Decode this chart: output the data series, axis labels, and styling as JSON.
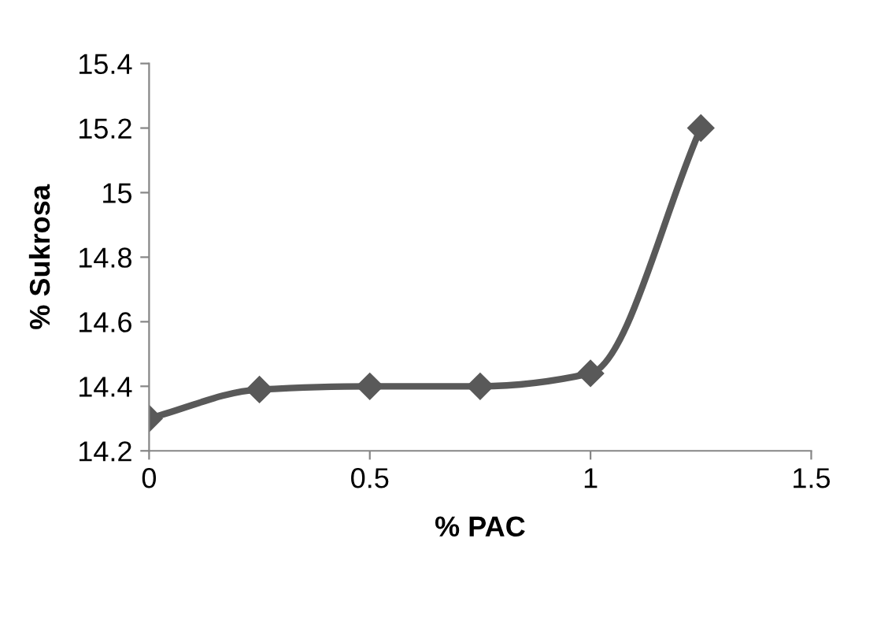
{
  "chart_data": {
    "type": "line",
    "xlabel": "% PAC",
    "ylabel": "% Sukrosa",
    "x": [
      0,
      0.25,
      0.5,
      0.75,
      1,
      1.25
    ],
    "series": [
      {
        "color": "#595959",
        "values": [
          14.3,
          14.39,
          14.4,
          14.4,
          14.44,
          15.2
        ]
      }
    ],
    "xlim": [
      0,
      1.5
    ],
    "xticks": [
      0,
      0.5,
      1,
      1.5
    ],
    "ylim": [
      14.2,
      15.4
    ],
    "yticks": [
      14.2,
      14.4,
      14.6,
      14.8,
      15,
      15.2,
      15.4
    ],
    "marker": "diamond",
    "line_style": "solid",
    "grid": false,
    "legend": false
  }
}
